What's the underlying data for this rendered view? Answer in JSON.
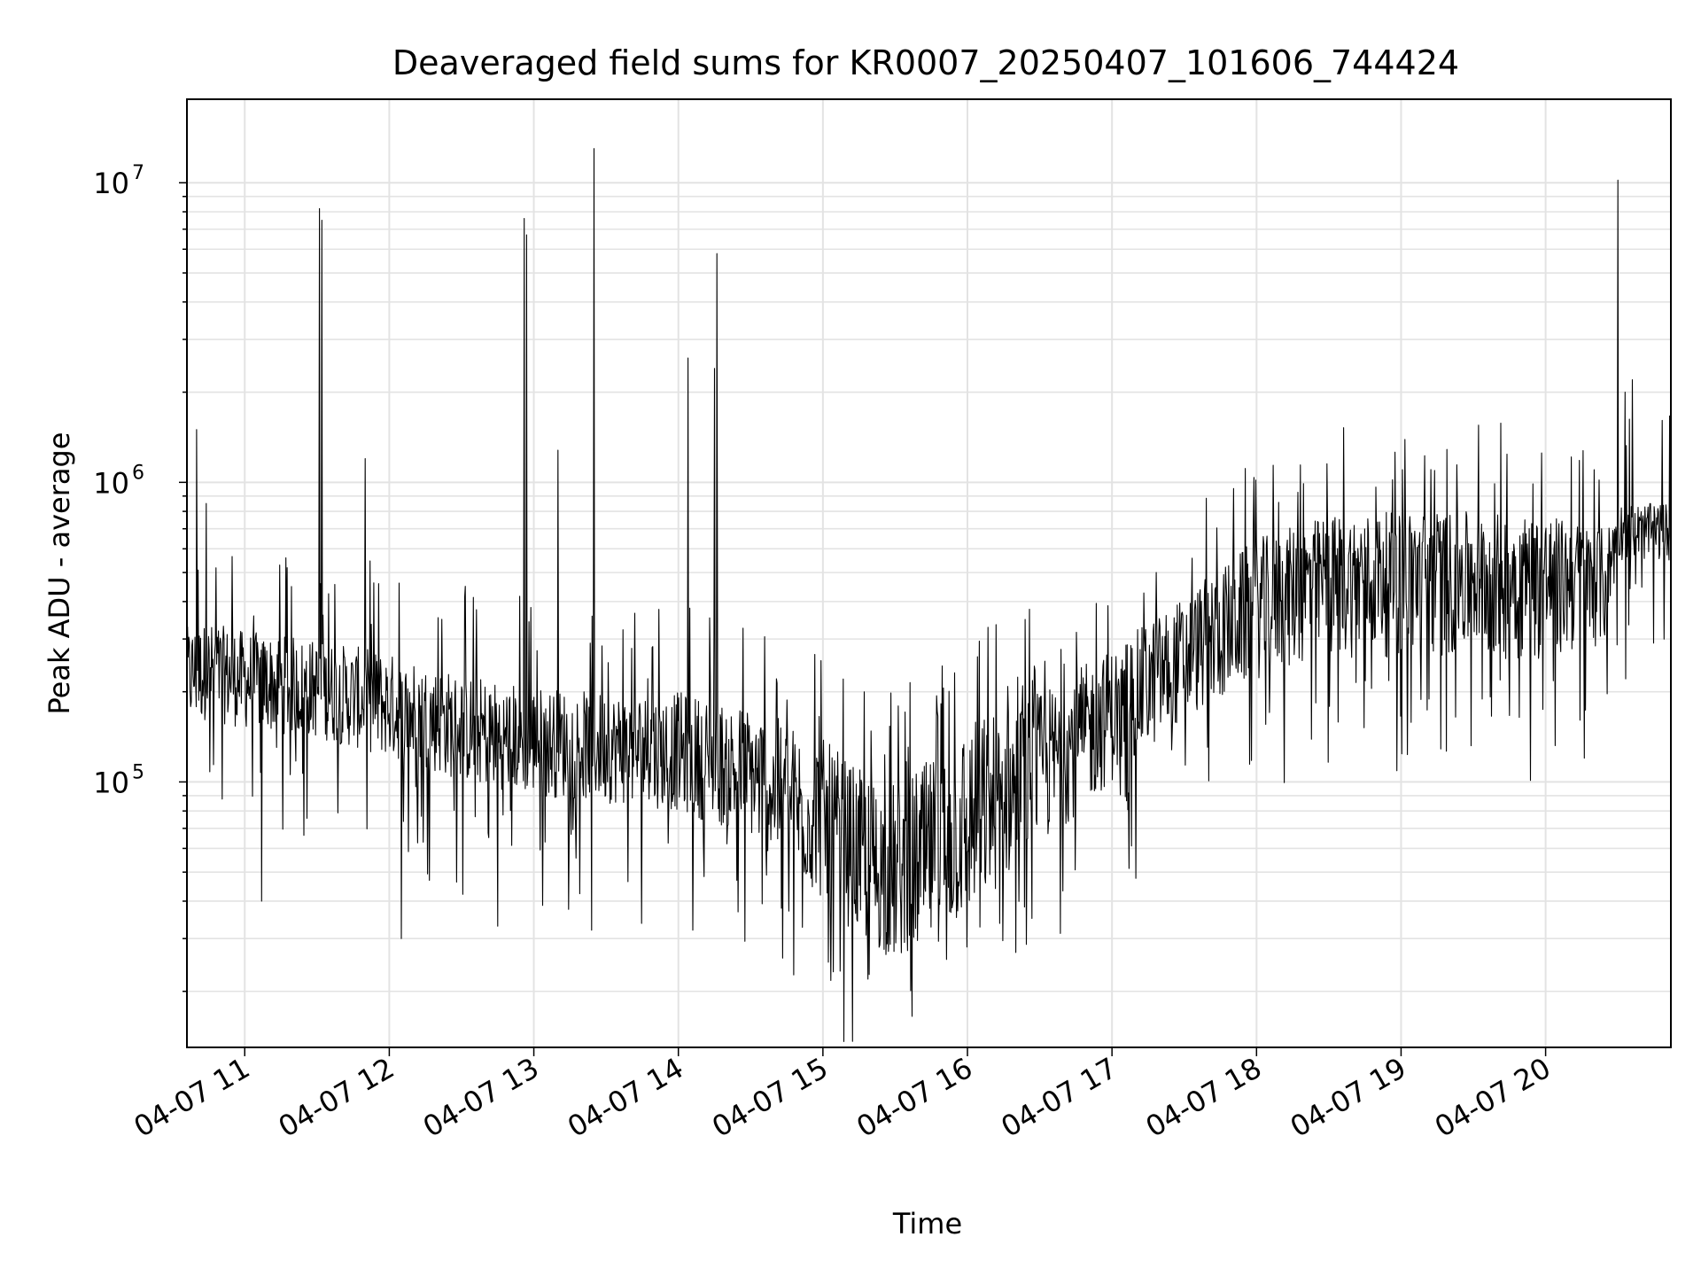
{
  "chart_data": {
    "type": "line",
    "title": "Deaveraged field sums for KR0007_20250407_101606_744424",
    "xlabel": "Time",
    "ylabel": "Peak ADU - average",
    "y_scale": "log",
    "grid": true,
    "legend": "none",
    "line_color": "#000000",
    "grid_color": "#e3e3e3",
    "xlim": [
      "2025-04-07 10:36",
      "2025-04-07 20:52"
    ],
    "ylim": [
      13000,
      19000000
    ],
    "x_tick_labels": [
      "04-07 11",
      "04-07 12",
      "04-07 13",
      "04-07 14",
      "04-07 15",
      "04-07 16",
      "04-07 17",
      "04-07 18",
      "04-07 19",
      "04-07 20"
    ],
    "x_ticks": [
      "2025-04-07 11:00",
      "2025-04-07 12:00",
      "2025-04-07 13:00",
      "2025-04-07 14:00",
      "2025-04-07 15:00",
      "2025-04-07 16:00",
      "2025-04-07 17:00",
      "2025-04-07 18:00",
      "2025-04-07 19:00",
      "2025-04-07 20:00"
    ],
    "y_ticks": [
      {
        "value": 100000,
        "base": "10",
        "exponent": "5"
      },
      {
        "value": 1000000,
        "base": "10",
        "exponent": "6"
      },
      {
        "value": 10000000,
        "base": "10",
        "exponent": "7"
      }
    ],
    "series": [
      {
        "envelope": {
          "time": [
            "10:36",
            "10:45",
            "11:00",
            "11:30",
            "12:00",
            "12:30",
            "13:00",
            "13:30",
            "14:00",
            "14:30",
            "15:00",
            "15:15",
            "15:30",
            "15:45",
            "16:00",
            "16:30",
            "17:00",
            "17:30",
            "18:00",
            "18:30",
            "19:00",
            "19:30",
            "20:00",
            "20:25",
            "20:30",
            "20:52"
          ],
          "low": [
            150000,
            160000,
            150000,
            140000,
            120000,
            100000,
            90000,
            85000,
            80000,
            65000,
            40000,
            30000,
            25000,
            28000,
            35000,
            60000,
            100000,
            160000,
            220000,
            260000,
            260000,
            260000,
            250000,
            290000,
            550000,
            550000
          ],
          "median": [
            230000,
            240000,
            220000,
            200000,
            180000,
            150000,
            135000,
            130000,
            125000,
            105000,
            70000,
            52000,
            45000,
            52000,
            70000,
            110000,
            170000,
            260000,
            400000,
            510000,
            540000,
            520000,
            520000,
            480000,
            700000,
            700000
          ],
          "high": [
            330000,
            340000,
            320000,
            300000,
            270000,
            230000,
            210000,
            200000,
            200000,
            180000,
            140000,
            110000,
            100000,
            120000,
            160000,
            200000,
            280000,
            420000,
            650000,
            780000,
            800000,
            800000,
            780000,
            700000,
            850000,
            850000
          ]
        },
        "spikes": [
          {
            "time": "10:40",
            "value": 1500000
          },
          {
            "time": "10:44",
            "value": 850000
          },
          {
            "time": "11:31",
            "value": 8200000
          },
          {
            "time": "11:32",
            "value": 7500000
          },
          {
            "time": "11:50",
            "value": 1200000
          },
          {
            "time": "12:56",
            "value": 7600000
          },
          {
            "time": "12:57",
            "value": 6700000
          },
          {
            "time": "13:10",
            "value": 1280000
          },
          {
            "time": "13:25",
            "value": 13000000
          },
          {
            "time": "14:04",
            "value": 2600000
          },
          {
            "time": "14:15",
            "value": 2400000
          },
          {
            "time": "14:16",
            "value": 5800000
          },
          {
            "time": "20:30",
            "value": 10200000
          },
          {
            "time": "20:33",
            "value": 2000000
          },
          {
            "time": "20:36",
            "value": 2200000
          }
        ],
        "dips": [
          {
            "time": "11:07",
            "value": 40000
          },
          {
            "time": "12:05",
            "value": 30000
          },
          {
            "time": "12:45",
            "value": 33000
          },
          {
            "time": "13:24",
            "value": 32000
          },
          {
            "time": "14:06",
            "value": 32000
          },
          {
            "time": "15:37",
            "value": 16500
          }
        ]
      }
    ]
  }
}
